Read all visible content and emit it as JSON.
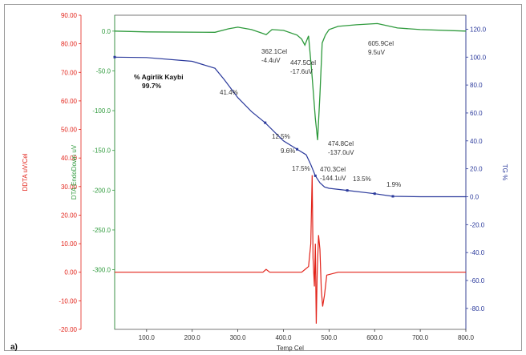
{
  "panel_label": "a)",
  "colors": {
    "dota": "#e2231a",
    "dta": "#2e9a3c",
    "tg": "#2b3a9c",
    "axis": "#333333"
  },
  "chart_data": {
    "type": "line",
    "title": "",
    "xlabel": "Temp Cel",
    "xlim": [
      30,
      800
    ],
    "x_ticks": [
      "100.0",
      "200.0",
      "300.0",
      "400.0",
      "500.0",
      "600.0",
      "700.0",
      "800.0"
    ],
    "axes": {
      "dota": {
        "label": "DDTA uV/Cel",
        "ylim": [
          -20,
          90
        ],
        "ticks": [
          "90.00",
          "80.00",
          "70.00",
          "60.00",
          "50.00",
          "40.00",
          "30.00",
          "20.00",
          "10.00",
          "0.00",
          "-10.00",
          "-20.00"
        ]
      },
      "dta": {
        "label": "DTA EndoDown uV",
        "ylim": [
          -375,
          20
        ],
        "ticks": [
          "0.0",
          "-50.0",
          "-100.0",
          "-150.0",
          "-200.0",
          "-250.0",
          "-300.0"
        ]
      },
      "tg": {
        "label": "TG %",
        "ylim": [
          -95,
          130
        ],
        "ticks": [
          "120.0",
          "100.0",
          "80.0",
          "60.0",
          "40.0",
          "20.0",
          "0.0",
          "-20.0",
          "-40.0",
          "-60.0",
          "-80.0"
        ]
      }
    },
    "series": [
      {
        "id": "tg",
        "axis": "tg",
        "x": [
          30,
          100,
          200,
          250,
          270,
          300,
          330,
          360,
          400,
          430,
          450,
          460,
          470,
          480,
          490,
          500,
          540,
          600,
          640,
          700,
          800
        ],
        "y": [
          100,
          99.7,
          97,
          92,
          84,
          71,
          61,
          53,
          40,
          34,
          30,
          23,
          15,
          10,
          7,
          6,
          4.5,
          2.2,
          0.3,
          0,
          0
        ]
      },
      {
        "id": "dta",
        "axis": "dta",
        "x": [
          30,
          100,
          250,
          280,
          300,
          330,
          355,
          362,
          375,
          400,
          430,
          440,
          447,
          455,
          462,
          470,
          475,
          480,
          485,
          492,
          500,
          520,
          560,
          606,
          650,
          700,
          800
        ],
        "y": [
          0,
          -1,
          -1.5,
          3,
          5,
          2,
          -3,
          -4.4,
          2,
          1,
          -5,
          -10,
          -17.6,
          -6,
          -50,
          -110,
          -137,
          -80,
          -15,
          -5,
          2,
          6,
          8,
          9.5,
          4,
          2,
          0
        ]
      },
      {
        "id": "dota",
        "axis": "dota",
        "x": [
          30,
          200,
          300,
          355,
          362,
          370,
          440,
          455,
          460,
          463,
          465,
          468,
          470,
          472,
          474,
          477,
          480,
          483,
          486,
          490,
          495,
          520,
          600,
          700,
          800
        ],
        "y": [
          0,
          0,
          0,
          0,
          1,
          0,
          0,
          2,
          10,
          34,
          5,
          -5,
          10,
          -18,
          0,
          13,
          8,
          -6,
          -12,
          -8,
          -1,
          0,
          0,
          0,
          0
        ]
      }
    ],
    "annotations": [
      {
        "text": "362.1Cel",
        "x": 362.1,
        "y": -4.4,
        "axis": "dta"
      },
      {
        "text": "-4.4uV",
        "x": 362.1,
        "y": -4.4,
        "axis": "dta"
      },
      {
        "text": "447.5Cel",
        "x": 447.5,
        "y": -17.6,
        "axis": "dta"
      },
      {
        "text": "-17.6uV",
        "x": 447.5,
        "y": -17.6,
        "axis": "dta"
      },
      {
        "text": "605.9Cel",
        "x": 605.9,
        "y": 9.5,
        "axis": "dta"
      },
      {
        "text": "9.5uV",
        "x": 605.9,
        "y": 9.5,
        "axis": "dta"
      },
      {
        "text": "474.8Cel",
        "x": 474.8,
        "y": -137.0,
        "axis": "dta"
      },
      {
        "text": "-137.0uV",
        "x": 474.8,
        "y": -137.0,
        "axis": "dta"
      },
      {
        "text": "470.3Cel",
        "x": 470.3,
        "y": -144.1,
        "axis": "dta"
      },
      {
        "text": "-144.1uV",
        "x": 470.3,
        "y": -144.1,
        "axis": "dta"
      },
      {
        "text": "% Agirlik Kaybi",
        "bold": true
      },
      {
        "text": "99.7%",
        "bold": true
      },
      {
        "text": "41.4%"
      },
      {
        "text": "12.5%"
      },
      {
        "text": "9.6%"
      },
      {
        "text": "17.5%"
      },
      {
        "text": "13.5%"
      },
      {
        "text": "1.9%"
      }
    ]
  }
}
